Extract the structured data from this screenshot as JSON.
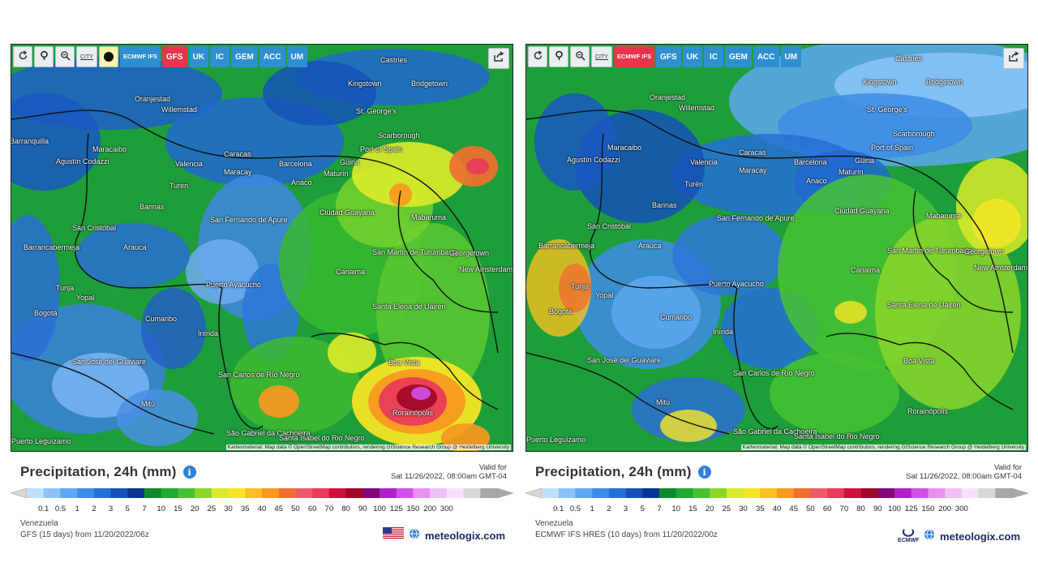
{
  "panels": [
    {
      "id": "left",
      "toolbar": {
        "icons": [
          "refresh-icon",
          "location-pin-icon",
          "zoom-icon"
        ],
        "city_label": "CITY",
        "models": [
          {
            "label": "ECMWF IFS",
            "active": false
          },
          {
            "label": "GFS",
            "active": true
          },
          {
            "label": "UK",
            "active": false
          },
          {
            "label": "IC",
            "active": false
          },
          {
            "label": "GEM",
            "active": false
          },
          {
            "label": "ACC",
            "active": false
          },
          {
            "label": "UM",
            "active": false
          }
        ]
      },
      "cities": [
        "Castries",
        "Kingstown",
        "Bridgetown",
        "Oranjestad",
        "Willemstad",
        "St. George's",
        "Scarborough",
        "Port of Spain",
        "Barranquilla",
        "Maracaibo",
        "Caracas",
        "Valencia",
        "Maracay",
        "Barcelona",
        "Güiria",
        "Maturín",
        "Agustín Codazzi",
        "Turén",
        "Anaco",
        "Barinas",
        "San Cristóbal",
        "Ciudad Guayana",
        "Mabaruma",
        "San Fernando de Apure",
        "Arauca",
        "San Martín de Turumbang",
        "Georgetown",
        "New Amsterdam",
        "Barrancabermeja",
        "Canaima",
        "Tunja",
        "Yopal",
        "Puerto Ayacucho",
        "Bogotá",
        "Santa Elena de Uairén",
        "Cumaribo",
        "Inírida",
        "San José del Guaviare",
        "Boa Vista",
        "San Carlos de Río Negro",
        "Mitú",
        "Rorainópolis",
        "São Gabriel da Cachoeira",
        "Santa Isabel do Rio Negro",
        "Puerto Leguízamo"
      ],
      "attribution": "Kartenmaterial: Map data © OpenStreetMap contributors, rendering GIScience Research Group @ Heidelberg University",
      "title": "Precipitation, 24h (mm)",
      "valid_label": "Valid for",
      "valid_time": "Sat 11/26/2022, 08:00am GMT-04",
      "region": "Venezuela",
      "run": "GFS (15 days) from 11/20/2022/06z",
      "brand": "meteologix.com",
      "source_logo": "us-flag-icon"
    },
    {
      "id": "right",
      "toolbar": {
        "icons": [
          "refresh-icon",
          "location-pin-icon",
          "zoom-icon"
        ],
        "city_label": "CITY",
        "models": [
          {
            "label": "ECMWF IFS",
            "active": true
          },
          {
            "label": "GFS",
            "active": false
          },
          {
            "label": "UK",
            "active": false
          },
          {
            "label": "IC",
            "active": false
          },
          {
            "label": "GEM",
            "active": false
          },
          {
            "label": "ACC",
            "active": false
          },
          {
            "label": "UM",
            "active": false
          }
        ]
      },
      "cities": [
        "Castries",
        "Kingstown",
        "Bridgetown",
        "Oranjestad",
        "Willemstad",
        "St. George's",
        "Scarborough",
        "Port of Spain",
        "Maracaibo",
        "Caracas",
        "Valencia",
        "Maracay",
        "Barcelona",
        "Güiria",
        "Maturín",
        "Agustín Codazzi",
        "Turén",
        "Anaco",
        "Barinas",
        "San Cristóbal",
        "Ciudad Guayana",
        "Mabaruma",
        "San Fernando de Apure",
        "Arauca",
        "San Martín de Turumbang",
        "Georgetown",
        "New Amsterdam",
        "Barrancabermeja",
        "Canaima",
        "Tunja",
        "Yopal",
        "Puerto Ayacucho",
        "Bogotá",
        "Santa Elena de Uairén",
        "Cumaribo",
        "Inírida",
        "San José del Guaviare",
        "Boa Vista",
        "San Carlos de Río Negro",
        "Mitú",
        "Rorainópolis",
        "São Gabriel da Cachoeira",
        "Santa Isabel do Rio Negro",
        "Puerto Leguízamo"
      ],
      "attribution": "Kartenmaterial: Map data © OpenStreetMap contributors, rendering GIScience Research Group @ Heidelberg University",
      "title": "Precipitation, 24h (mm)",
      "valid_label": "Valid for",
      "valid_time": "Sat 11/26/2022, 08:00am GMT-04",
      "region": "Venezuela",
      "run": "ECMWF IFS HRES (10 days) from 11/20/2022/00z",
      "brand": "meteologix.com",
      "source_logo": "ECMWF"
    }
  ],
  "legend": {
    "ticks": [
      "0.1",
      "0.5",
      "1",
      "2",
      "3",
      "5",
      "7",
      "10",
      "15",
      "20",
      "25",
      "30",
      "35",
      "40",
      "45",
      "50",
      "60",
      "70",
      "80",
      "90",
      "100",
      "125",
      "150",
      "200",
      "300"
    ],
    "colors": [
      "#bfe0ff",
      "#8cc4f8",
      "#5ea8f0",
      "#3d8ce6",
      "#2570d6",
      "#1550b8",
      "#0a3590",
      "#0f8a2a",
      "#1fa833",
      "#48c234",
      "#8ad62c",
      "#d8ea2a",
      "#f8e626",
      "#f8c020",
      "#f89820",
      "#f07030",
      "#f05a6a",
      "#e83a5a",
      "#d0103a",
      "#a00828",
      "#800878",
      "#b020c8",
      "#d050e8",
      "#e890f0",
      "#f0c0f8",
      "#f8e0fc",
      "#d8d8d8",
      "#a8a8a8"
    ]
  }
}
